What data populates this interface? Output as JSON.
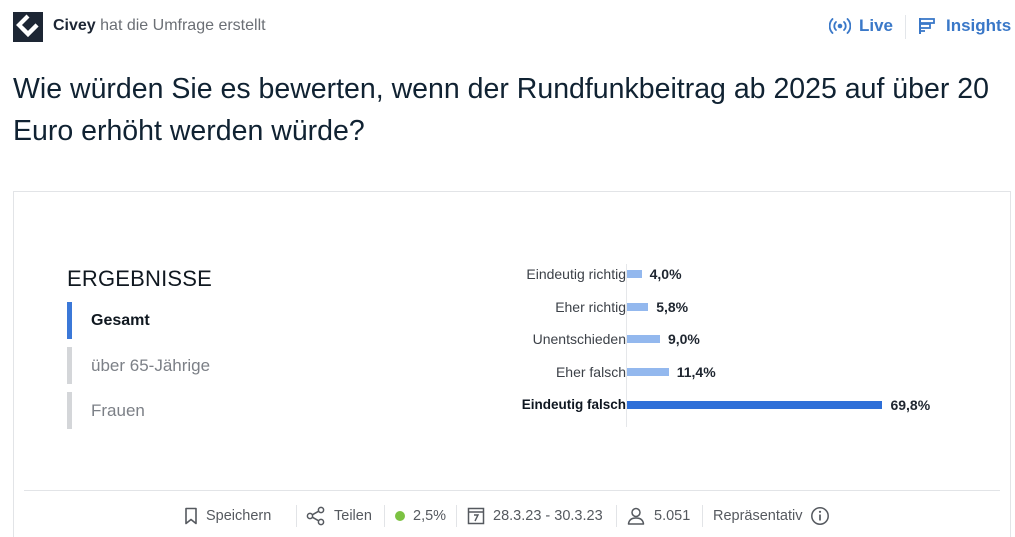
{
  "header": {
    "author_name": "Civey",
    "author_action": "hat die Umfrage erstellt",
    "live_label": "Live",
    "insights_label": "Insights"
  },
  "question": "Wie würden Sie es bewerten, wenn der Rundfunkbeitrag ab 2025 auf über 20 Euro erhöht werden würde?",
  "results": {
    "heading": "ERGEBNISSE",
    "filters": [
      {
        "label": "Gesamt",
        "active": true
      },
      {
        "label": "über 65-Jährige",
        "active": false
      },
      {
        "label": "Frauen",
        "active": false
      }
    ]
  },
  "chart_data": {
    "type": "bar",
    "orientation": "horizontal",
    "categories": [
      "Eindeutig richtig",
      "Eher richtig",
      "Unentschieden",
      "Eher falsch",
      "Eindeutig falsch"
    ],
    "values": [
      4.0,
      5.8,
      9.0,
      11.4,
      69.8
    ],
    "value_labels": [
      "4,0%",
      "5,8%",
      "9,0%",
      "11,4%",
      "69,8%"
    ],
    "highlight_index": 4,
    "colors": {
      "bar": "#93b8ee",
      "highlight": "#2e6fd8"
    },
    "xlim": [
      0,
      100
    ]
  },
  "footer": {
    "save_label": "Speichern",
    "share_label": "Teilen",
    "error_margin": "2,5%",
    "date_range": "28.3.23 - 30.3.23",
    "participants": "5.051",
    "representative_label": "Repräsentativ"
  },
  "colors": {
    "accent": "#3a78c8",
    "active_indicator": "#3b78d8",
    "status_dot": "#7cc242"
  }
}
